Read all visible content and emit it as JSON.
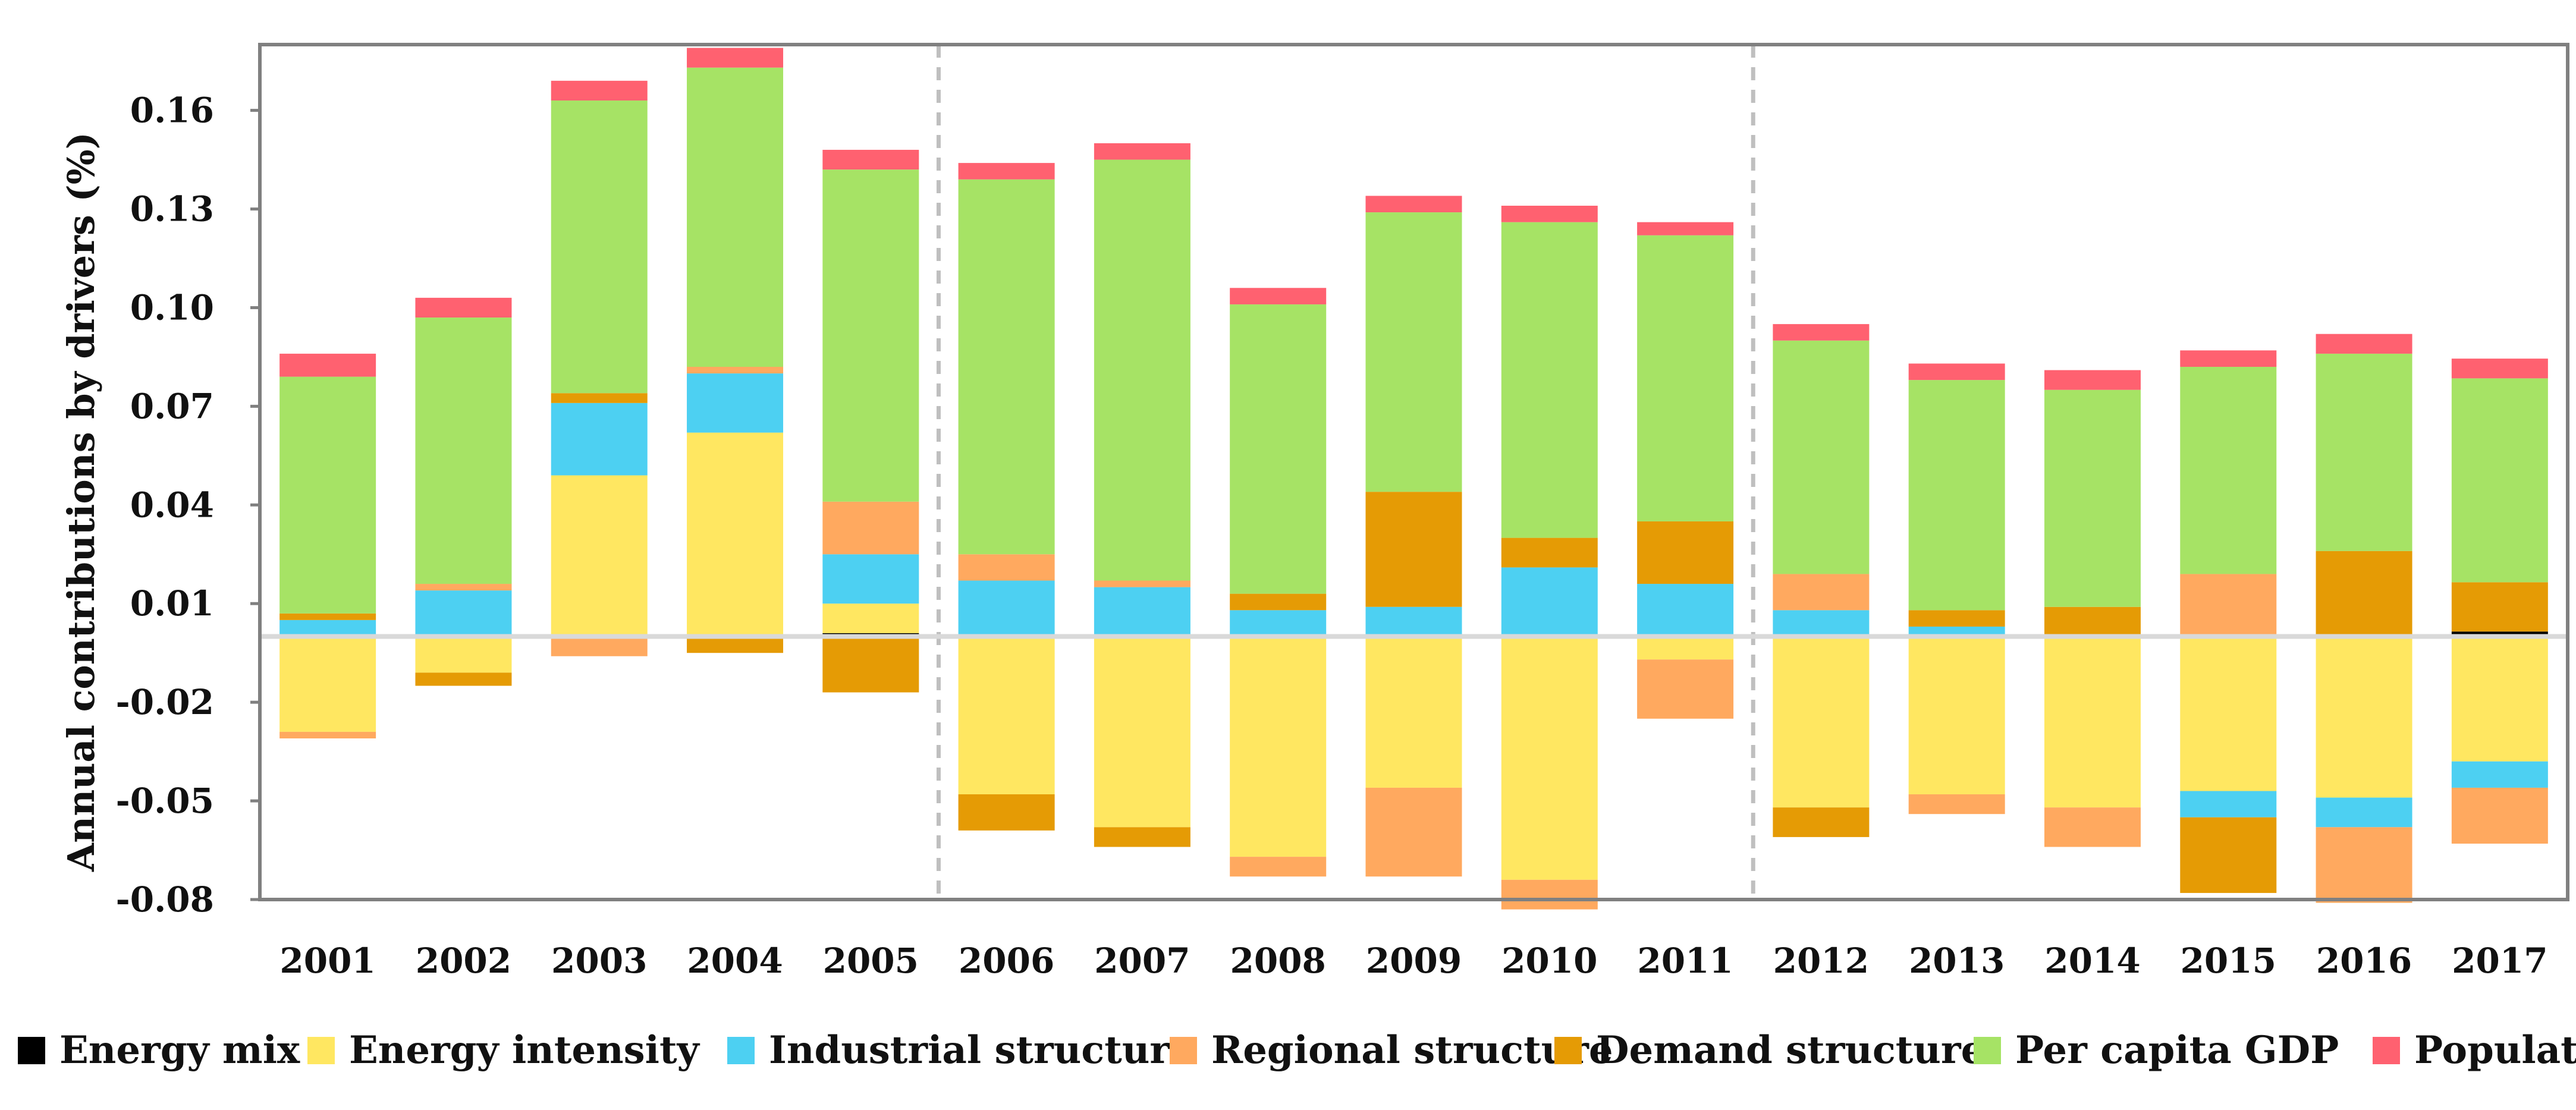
{
  "chart_data": {
    "type": "bar",
    "stacked": true,
    "title": "",
    "xlabel": "",
    "ylabel": "Annual contributions by drivers (%)",
    "ylim": [
      -0.08,
      0.18
    ],
    "yticks": [
      -0.08,
      -0.05,
      -0.02,
      0.01,
      0.04,
      0.07,
      0.1,
      0.13,
      0.16
    ],
    "ytick_labels": [
      "-0.08",
      "-0.05",
      "-0.02",
      "0.01",
      "0.04",
      "0.07",
      "0.10",
      "0.13",
      "0.16"
    ],
    "period_dividers_after": [
      "2005",
      "2011"
    ],
    "legend_position": "bottom",
    "categories": [
      "2001",
      "2002",
      "2003",
      "2004",
      "2005",
      "2006",
      "2007",
      "2008",
      "2009",
      "2010",
      "2011",
      "2012",
      "2013",
      "2014",
      "2015",
      "2016",
      "2017"
    ],
    "series": [
      {
        "name": "Energy mix",
        "color": "#000000",
        "values": [
          0,
          0,
          0,
          0,
          0.001,
          0,
          0,
          0,
          0,
          0,
          0,
          0,
          0,
          0,
          0,
          0,
          0.0015
        ]
      },
      {
        "name": "Energy intensity",
        "color": "#FFE761",
        "values": [
          -0.029,
          -0.011,
          0.049,
          0.062,
          0.009,
          -0.048,
          -0.058,
          -0.067,
          -0.046,
          -0.074,
          -0.007,
          -0.052,
          -0.048,
          -0.052,
          -0.047,
          -0.049,
          -0.038
        ]
      },
      {
        "name": "Industrial structure",
        "color": "#4DD0F2",
        "values": [
          0.005,
          0.014,
          0.022,
          0.018,
          0.015,
          0.017,
          0.015,
          0.008,
          0.009,
          0.021,
          0.016,
          0.008,
          0.003,
          0,
          -0.008,
          -0.009,
          -0.008
        ]
      },
      {
        "name": "Regional structure",
        "color": "#FFA95F",
        "values": [
          -0.002,
          0.002,
          -0.006,
          0.002,
          0.016,
          0.008,
          0.002,
          -0.006,
          -0.027,
          -0.009,
          -0.018,
          0.011,
          -0.006,
          -0.012,
          0.019,
          -0.023,
          -0.017
        ]
      },
      {
        "name": "Demand structure",
        "color": "#E59B05",
        "values": [
          0.002,
          -0.004,
          0.003,
          -0.005,
          -0.017,
          -0.011,
          -0.006,
          0.005,
          0.035,
          0.009,
          0.019,
          -0.009,
          0.005,
          0.009,
          -0.023,
          0.026,
          0.015
        ]
      },
      {
        "name": "Per capita GDP",
        "color": "#A6E365",
        "values": [
          0.072,
          0.081,
          0.089,
          0.091,
          0.101,
          0.114,
          0.128,
          0.088,
          0.085,
          0.096,
          0.087,
          0.071,
          0.07,
          0.066,
          0.063,
          0.06,
          0.062
        ]
      },
      {
        "name": "Population",
        "color": "#FF6170",
        "values": [
          0.007,
          0.006,
          0.006,
          0.006,
          0.006,
          0.005,
          0.005,
          0.005,
          0.005,
          0.005,
          0.004,
          0.005,
          0.005,
          0.006,
          0.005,
          0.006,
          0.006
        ]
      }
    ]
  }
}
